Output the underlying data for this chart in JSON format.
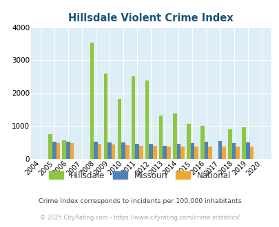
{
  "title": "Hillsdale Violent Crime Index",
  "years": [
    2004,
    2005,
    2006,
    2007,
    2008,
    2009,
    2010,
    2011,
    2012,
    2013,
    2014,
    2015,
    2016,
    2017,
    2018,
    2019,
    2020
  ],
  "hillsdale": [
    0,
    760,
    570,
    0,
    3540,
    2600,
    1820,
    2500,
    2380,
    1320,
    1380,
    1060,
    1000,
    0,
    900,
    960,
    0
  ],
  "missouri": [
    0,
    520,
    530,
    0,
    530,
    510,
    500,
    470,
    460,
    400,
    450,
    490,
    520,
    540,
    490,
    500,
    0
  ],
  "national": [
    0,
    480,
    490,
    0,
    460,
    430,
    410,
    400,
    390,
    370,
    370,
    370,
    370,
    380,
    380,
    370,
    0
  ],
  "hillsdale_color": "#8dc63f",
  "missouri_color": "#4f81bd",
  "national_color": "#f0a830",
  "bg_color": "#ddeef6",
  "ylim": [
    0,
    4000
  ],
  "yticks": [
    0,
    1000,
    2000,
    3000,
    4000
  ],
  "title_color": "#1a5276",
  "legend_labels": [
    "Hillsdale",
    "Missouri",
    "National"
  ],
  "footnote1": "Crime Index corresponds to incidents per 100,000 inhabitants",
  "footnote2": "© 2025 CityRating.com - https://www.cityrating.com/crime-statistics/",
  "footnote1_color": "#444444",
  "footnote2_color": "#aaaaaa",
  "bar_width": 0.28
}
